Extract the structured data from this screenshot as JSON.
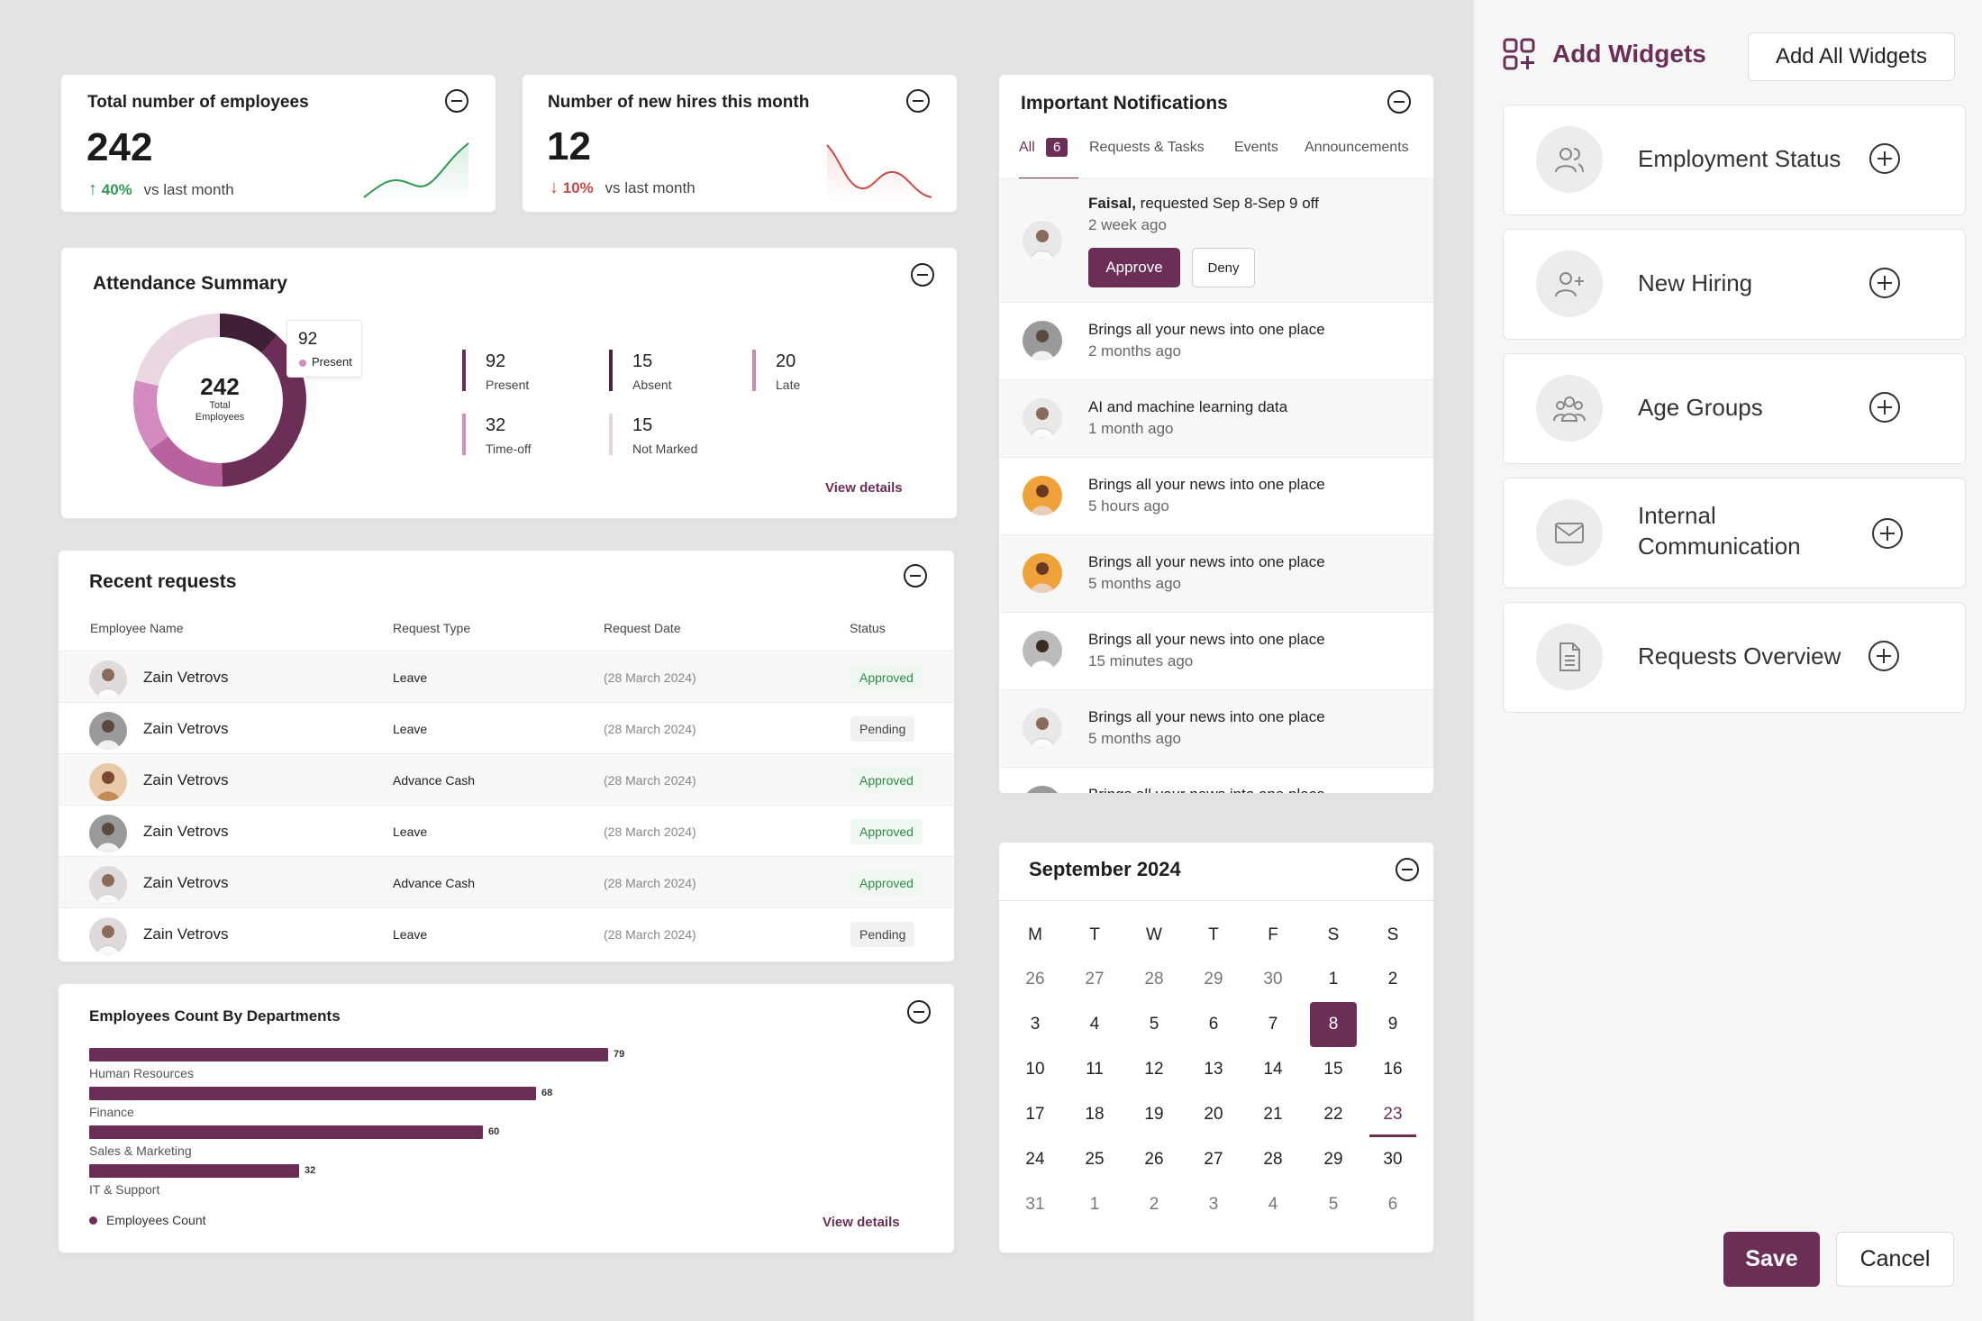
{
  "stats": [
    {
      "title": "Total number of employees",
      "value": "242",
      "change_pct": "40%",
      "change_label": "vs last month",
      "direction": "up",
      "color": "#2f9a54"
    },
    {
      "title": "Number of new hires this month",
      "value": "12",
      "change_pct": "10%",
      "change_label": "vs last month",
      "direction": "down",
      "color": "#c94a44"
    }
  ],
  "attendance": {
    "title": "Attendance Summary",
    "total_value": "242",
    "total_label_1": "Total",
    "total_label_2": "Employees",
    "tooltip_value": "92",
    "tooltip_label": "Present",
    "items": [
      {
        "value": "92",
        "label": "Present",
        "color": "#6b2f57"
      },
      {
        "value": "15",
        "label": "Absent",
        "color": "#4d2340"
      },
      {
        "value": "20",
        "label": "Late",
        "color": "#c988b6"
      },
      {
        "value": "32",
        "label": "Time-off",
        "color": "#d48cc0"
      },
      {
        "value": "15",
        "label": "Not Marked",
        "color": "#e7d6e0"
      }
    ],
    "view_details": "View details"
  },
  "requests": {
    "title": "Recent requests",
    "columns": [
      "Employee Name",
      "Request Type",
      "Request Date",
      "Status"
    ],
    "rows": [
      {
        "name": "Zain Vetrovs",
        "type": "Leave",
        "date": "(28 March 2024)",
        "status": "Approved"
      },
      {
        "name": "Zain Vetrovs",
        "type": "Leave",
        "date": "(28 March 2024)",
        "status": "Pending"
      },
      {
        "name": "Zain Vetrovs",
        "type": "Advance Cash",
        "date": "(28 March 2024)",
        "status": "Approved"
      },
      {
        "name": "Zain Vetrovs",
        "type": "Leave",
        "date": "(28 March 2024)",
        "status": "Approved"
      },
      {
        "name": "Zain Vetrovs",
        "type": "Advance Cash",
        "date": "(28 March 2024)",
        "status": "Approved"
      },
      {
        "name": "Zain Vetrovs",
        "type": "Leave",
        "date": "(28 March 2024)",
        "status": "Pending"
      }
    ]
  },
  "departments": {
    "title": "Employees Count By Departments",
    "legend": "Employees Count",
    "view_details": "View details"
  },
  "chart_data": {
    "type": "bar",
    "orientation": "horizontal",
    "title": "Employees Count By Departments",
    "categories": [
      "Human Resources",
      "Finance",
      "Sales & Marketing",
      "IT & Support"
    ],
    "series": [
      {
        "name": "Employees Count",
        "values": [
          79,
          68,
          60,
          32
        ]
      }
    ],
    "xlim": [
      0,
      79
    ],
    "grid": false,
    "legend_position": "bottom-left"
  },
  "notifications": {
    "title": "Important Notifications",
    "tabs": [
      {
        "label": "All",
        "count": "6"
      },
      {
        "label": "Requests & Tasks"
      },
      {
        "label": "Events"
      },
      {
        "label": "Announcements"
      }
    ],
    "featured": {
      "name": "Faisal,",
      "text": "requested Sep 8-Sep 9 off",
      "time": "2 week ago",
      "approve": "Approve",
      "deny": "Deny"
    },
    "items": [
      {
        "text": "Brings all your news into one place",
        "time": "2 months ago"
      },
      {
        "text": "AI and machine learning data",
        "time": "1 month ago"
      },
      {
        "text": "Brings all your news into one place",
        "time": "5 hours ago"
      },
      {
        "text": "Brings all your news into one place",
        "time": "5 months ago"
      },
      {
        "text": "Brings all your news into one place",
        "time": "15 minutes ago"
      },
      {
        "text": "Brings all your news into one place",
        "time": "5 months ago"
      },
      {
        "text": "Brings all your news into one place",
        "time": ""
      }
    ]
  },
  "calendar": {
    "title": "September 2024",
    "weekdays": [
      "M",
      "T",
      "W",
      "T",
      "F",
      "S",
      "S"
    ],
    "days": [
      "26",
      "27",
      "28",
      "29",
      "30",
      "1",
      "2",
      "3",
      "4",
      "5",
      "6",
      "7",
      "8",
      "9",
      "10",
      "11",
      "12",
      "13",
      "14",
      "15",
      "16",
      "17",
      "18",
      "19",
      "20",
      "21",
      "22",
      "23",
      "24",
      "25",
      "26",
      "27",
      "28",
      "29",
      "30",
      "31",
      "1",
      "2",
      "3",
      "4",
      "5",
      "6"
    ],
    "selected": "8",
    "today": "23"
  },
  "panel": {
    "title": "Add Widgets",
    "add_all": "Add All Widgets",
    "widgets": [
      {
        "label": "Employment Status",
        "icon": "users-icon"
      },
      {
        "label": "New Hiring",
        "icon": "user-plus-icon"
      },
      {
        "label": "Age Groups",
        "icon": "user-group-icon"
      },
      {
        "label": "Internal Communication",
        "icon": "mail-icon"
      },
      {
        "label": "Requests Overview",
        "icon": "document-icon"
      }
    ],
    "save": "Save",
    "cancel": "Cancel"
  },
  "colors": {
    "brand": "#6b2f57",
    "approved": "#2f8a47"
  }
}
